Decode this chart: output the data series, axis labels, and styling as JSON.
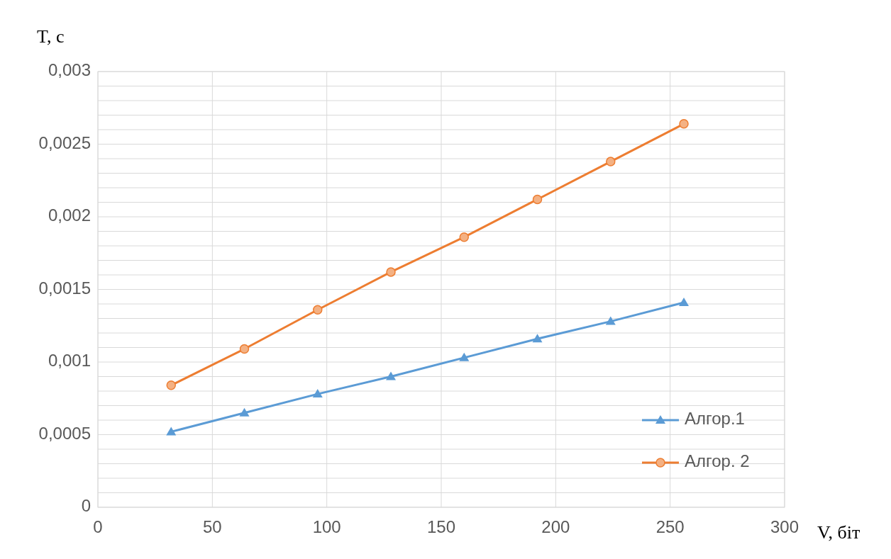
{
  "chart_data": {
    "type": "line",
    "xlabel": "V, біт",
    "ylabel": "T, с",
    "x": [
      32,
      64,
      96,
      128,
      160,
      192,
      224,
      256
    ],
    "series": [
      {
        "name": "Алгор.1",
        "color": "#5b9bd5",
        "marker": "triangle",
        "values": [
          0.00052,
          0.00065,
          0.00078,
          0.0009,
          0.00103,
          0.00116,
          0.00128,
          0.00141
        ]
      },
      {
        "name": "Алгор. 2",
        "color": "#ed7d31",
        "marker": "circle",
        "values": [
          0.00084,
          0.00109,
          0.00136,
          0.00162,
          0.00186,
          0.00212,
          0.00238,
          0.00264
        ]
      }
    ],
    "xlim": [
      0,
      300
    ],
    "xticks": [
      0,
      50,
      100,
      150,
      200,
      250,
      300
    ],
    "ylim": [
      0,
      0.003
    ],
    "yticks": [
      {
        "value": 0,
        "label": "0"
      },
      {
        "value": 0.0001,
        "label": null
      },
      {
        "value": 0.0002,
        "label": null
      },
      {
        "value": 0.0003,
        "label": null
      },
      {
        "value": 0.0004,
        "label": null
      },
      {
        "value": 0.0005,
        "label": "0,0005"
      },
      {
        "value": 0.0006,
        "label": null
      },
      {
        "value": 0.0007,
        "label": null
      },
      {
        "value": 0.0008,
        "label": null
      },
      {
        "value": 0.0009,
        "label": null
      },
      {
        "value": 0.001,
        "label": "0,001"
      },
      {
        "value": 0.0011,
        "label": null
      },
      {
        "value": 0.0012,
        "label": null
      },
      {
        "value": 0.0013,
        "label": null
      },
      {
        "value": 0.0014,
        "label": null
      },
      {
        "value": 0.0015,
        "label": "0,0015"
      },
      {
        "value": 0.0016,
        "label": null
      },
      {
        "value": 0.0017,
        "label": null
      },
      {
        "value": 0.0018,
        "label": null
      },
      {
        "value": 0.0019,
        "label": null
      },
      {
        "value": 0.002,
        "label": "0,002"
      },
      {
        "value": 0.0021,
        "label": null
      },
      {
        "value": 0.0022,
        "label": null
      },
      {
        "value": 0.0023,
        "label": null
      },
      {
        "value": 0.0024,
        "label": null
      },
      {
        "value": 0.0025,
        "label": "0,0025"
      },
      {
        "value": 0.0026,
        "label": null
      },
      {
        "value": 0.0027,
        "label": null
      },
      {
        "value": 0.0028,
        "label": null
      },
      {
        "value": 0.0029,
        "label": null
      },
      {
        "value": 0.003,
        "label": "0,003"
      }
    ],
    "grid": true,
    "legend": "bottom right",
    "line_style": "solid"
  }
}
